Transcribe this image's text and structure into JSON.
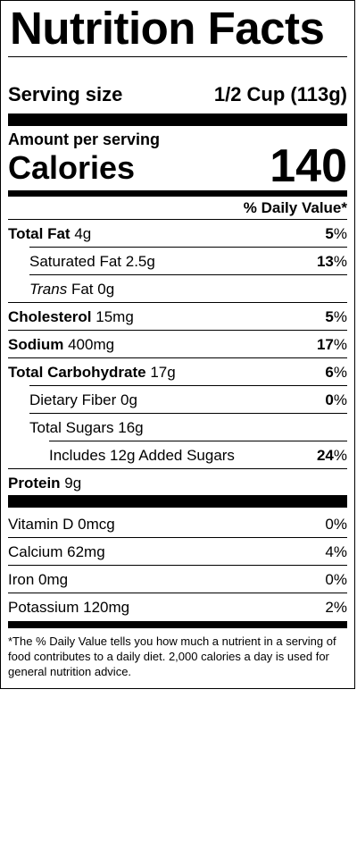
{
  "title": "Nutrition Facts",
  "serving": {
    "label": "Serving size",
    "value": "1/2 Cup (113g)"
  },
  "amount_per_serving": "Amount per serving",
  "calories": {
    "label": "Calories",
    "value": "140"
  },
  "daily_value_header": "% Daily Value*",
  "nutrients": [
    {
      "name": "Total Fat",
      "amount": "4g",
      "bold": true,
      "indent": 0,
      "italic_prefix": "",
      "percent": "5",
      "percent_suffix": "%"
    },
    {
      "name": "Saturated Fat",
      "amount": "2.5g",
      "bold": false,
      "indent": 1,
      "italic_prefix": "",
      "percent": "13",
      "percent_suffix": "%"
    },
    {
      "name": "Fat",
      "amount": "0g",
      "bold": false,
      "indent": 1,
      "italic_prefix": "Trans",
      "percent": "",
      "percent_suffix": ""
    },
    {
      "name": "Cholesterol",
      "amount": "15mg",
      "bold": true,
      "indent": 0,
      "italic_prefix": "",
      "percent": "5",
      "percent_suffix": "%"
    },
    {
      "name": "Sodium",
      "amount": "400mg",
      "bold": true,
      "indent": 0,
      "italic_prefix": "",
      "percent": "17",
      "percent_suffix": "%"
    },
    {
      "name": "Total Carbohydrate",
      "amount": "17g",
      "bold": true,
      "indent": 0,
      "italic_prefix": "",
      "percent": "6",
      "percent_suffix": "%"
    },
    {
      "name": "Dietary Fiber",
      "amount": "0g",
      "bold": false,
      "indent": 1,
      "italic_prefix": "",
      "percent": "0",
      "percent_suffix": "%"
    },
    {
      "name": "Total Sugars",
      "amount": "16g",
      "bold": false,
      "indent": 1,
      "italic_prefix": "",
      "percent": "",
      "percent_suffix": ""
    },
    {
      "name": "Includes 12g Added Sugars",
      "amount": "",
      "bold": false,
      "indent": 2,
      "italic_prefix": "",
      "percent": "24",
      "percent_suffix": "%"
    },
    {
      "name": "Protein",
      "amount": "9g",
      "bold": true,
      "indent": 0,
      "italic_prefix": "",
      "percent": "",
      "percent_suffix": ""
    }
  ],
  "vitamins": [
    {
      "name": "Vitamin D",
      "amount": "0mcg",
      "percent": "0%"
    },
    {
      "name": "Calcium",
      "amount": "62mg",
      "percent": "4%"
    },
    {
      "name": "Iron",
      "amount": "0mg",
      "percent": "0%"
    },
    {
      "name": "Potassium",
      "amount": "120mg",
      "percent": "2%"
    }
  ],
  "footnote": "*The % Daily Value tells you how much a nutrient in a serving of food contributes to a daily diet. 2,000 calories a day is used for general nutrition advice."
}
